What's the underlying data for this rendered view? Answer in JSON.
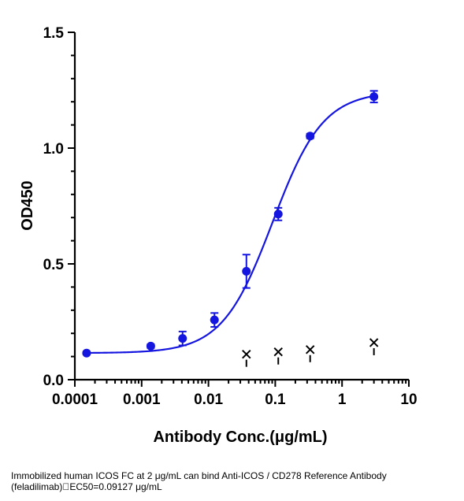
{
  "chart_data": {
    "type": "scatter",
    "xlabel": "Antibody Conc.(μg/mL)",
    "ylabel": "OD450",
    "x_scale": "log",
    "xlim": [
      0.0001,
      10
    ],
    "ylim": [
      0,
      1.5
    ],
    "x_tick_labels": [
      "0.0001",
      "0.001",
      "0.01",
      "0.1",
      "1",
      "10"
    ],
    "x_tick_values": [
      0.0001,
      0.001,
      0.01,
      0.1,
      1,
      10
    ],
    "y_tick_labels": [
      "0.0",
      "0.5",
      "1.0",
      "1.5"
    ],
    "y_tick_values": [
      0,
      0.5,
      1.0,
      1.5
    ],
    "grid": false,
    "series": [
      {
        "x": [
          0.00015,
          0.00137,
          0.0041,
          0.0123,
          0.037,
          0.111,
          0.333,
          3.0
        ],
        "y": [
          0.115,
          0.145,
          0.178,
          0.258,
          0.468,
          0.715,
          1.052,
          1.222
        ],
        "y_error": [
          0.006,
          0.008,
          0.03,
          0.03,
          0.072,
          0.027,
          0.01,
          0.025
        ],
        "color": "#1515e0",
        "marker": "circle"
      }
    ],
    "fit_curve": {
      "model": "4PL",
      "bottom": 0.115,
      "top": 1.245,
      "ec50": 0.09127,
      "hill": 1.15,
      "color": "#1515e0"
    },
    "outlier_markers": [
      {
        "x": 0.037,
        "y": 0.11,
        "symbol": "x",
        "color": "#000000"
      },
      {
        "x": 0.111,
        "y": 0.12,
        "symbol": "x",
        "color": "#000000"
      },
      {
        "x": 0.333,
        "y": 0.13,
        "symbol": "x",
        "color": "#000000"
      },
      {
        "x": 3.0,
        "y": 0.16,
        "symbol": "x",
        "color": "#000000"
      }
    ]
  },
  "caption": {
    "line1": "Immobilized human ICOS FC at 2  μg/mL can bind  Anti-ICOS / CD278 Reference Antibody",
    "line2": "(feladilimab)\u0000EC50=0.09127 μg/mL"
  }
}
